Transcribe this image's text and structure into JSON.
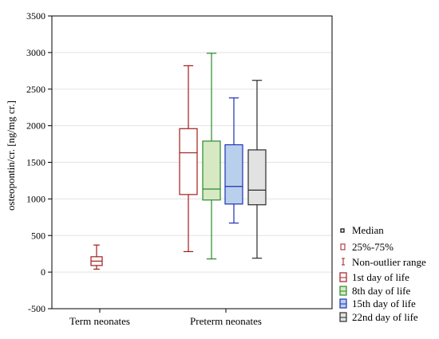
{
  "chart_data": {
    "type": "boxplot",
    "ylabel": "osteopontin/cr. [ng/mg cr.]",
    "ylim": [
      -500,
      3500
    ],
    "yticks": [
      -500,
      0,
      500,
      1000,
      1500,
      2000,
      2500,
      3000,
      3500
    ],
    "grid": true,
    "categories": [
      "Term neonates",
      "Preterm neonates"
    ],
    "boxes": [
      {
        "category": "Term neonates",
        "series": "1st day of life",
        "whisker_low": 40,
        "q1": 90,
        "median": 150,
        "q3": 210,
        "whisker_high": 370,
        "edge": "#a31c1c",
        "fill": "#ffffff"
      },
      {
        "category": "Preterm neonates",
        "series": "1st day of life",
        "whisker_low": 280,
        "q1": 1060,
        "median": 1630,
        "q3": 1960,
        "whisker_high": 2820,
        "edge": "#a31c1c",
        "fill": "#ffffff"
      },
      {
        "category": "Preterm neonates",
        "series": "8th day of life",
        "whisker_low": 180,
        "q1": 985,
        "median": 1135,
        "q3": 1790,
        "whisker_high": 2990,
        "edge": "#2a8a2a",
        "fill": "#d6e9c3"
      },
      {
        "category": "Preterm neonates",
        "series": "15th day of life",
        "whisker_low": 670,
        "q1": 930,
        "median": 1170,
        "q3": 1740,
        "whisker_high": 2380,
        "edge": "#1f2fb5",
        "fill": "#b8d0ec"
      },
      {
        "category": "Preterm neonates",
        "series": "22nd day of life",
        "whisker_low": 190,
        "q1": 920,
        "median": 1120,
        "q3": 1670,
        "whisker_high": 2620,
        "edge": "#2b2b2b",
        "fill": "#e2e2e2"
      }
    ],
    "legend": {
      "placement": "bottom-right, outside plot",
      "items": [
        {
          "label": "Median",
          "symbol": "median",
          "color": "#000000"
        },
        {
          "label": "25%-75%",
          "symbol": "box-small",
          "color": "#a31c1c"
        },
        {
          "label": "Non-outlier range",
          "symbol": "whisker",
          "color": "#a31c1c"
        },
        {
          "label": "1st day of life",
          "symbol": "box",
          "color": "#a31c1c",
          "fill": "#ffffff"
        },
        {
          "label": "8th day of life",
          "symbol": "box",
          "color": "#2a8a2a",
          "fill": "#d6e9c3"
        },
        {
          "label": "15th day of life",
          "symbol": "box",
          "color": "#1f2fb5",
          "fill": "#b8d0ec"
        },
        {
          "label": "22nd day of life",
          "symbol": "box",
          "color": "#2b2b2b",
          "fill": "#e2e2e2"
        }
      ]
    }
  }
}
